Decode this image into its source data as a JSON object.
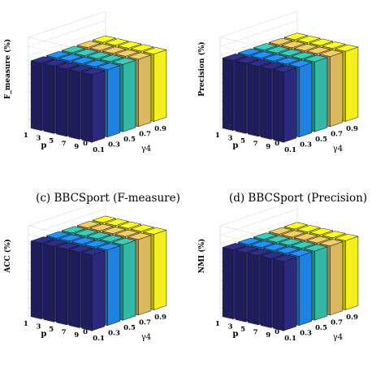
{
  "figure": {
    "captions": [
      "(c) BBCSport (F-measure)",
      "(d) BBCSport (Precision)"
    ]
  },
  "colors": [
    "#2b2a7e",
    "#1f82e0",
    "#35b7a6",
    "#d9b85e",
    "#f5ef1f"
  ],
  "chart_data": [
    {
      "type": "bar3d",
      "ylabel": "F_measure (%)",
      "zlim": [
        0,
        1
      ],
      "z_ticks": [
        "0",
        "0.1",
        "0.2",
        "0.3",
        "0.4",
        "0.5",
        "0.6",
        "0.7",
        "0.8",
        "0.9",
        "1"
      ],
      "p_label": "p",
      "p_ticks": [
        "1",
        "3",
        "5",
        "7",
        "9"
      ],
      "gamma_label": "γ4",
      "gamma_ticks": [
        "0.1",
        "0.3",
        "0.5",
        "0.7",
        "0.9"
      ],
      "values": [
        [
          0.74,
          0.74,
          0.74,
          0.74,
          0.74
        ],
        [
          0.74,
          0.74,
          0.74,
          0.74,
          0.74
        ],
        [
          0.74,
          0.74,
          0.74,
          0.74,
          0.74
        ],
        [
          0.74,
          0.74,
          0.74,
          0.74,
          0.74
        ],
        [
          0.74,
          0.74,
          0.74,
          0.74,
          0.74
        ]
      ]
    },
    {
      "type": "bar3d",
      "ylabel": "Precision (%)",
      "zlim": [
        0,
        1
      ],
      "z_ticks": [
        "0",
        "0.1",
        "0.2",
        "0.3",
        "0.4",
        "0.5",
        "0.6",
        "0.7",
        "0.8",
        "0.9",
        "1"
      ],
      "p_label": "p",
      "p_ticks": [
        "1",
        "3",
        "5",
        "7",
        "9"
      ],
      "gamma_label": "γ4",
      "gamma_ticks": [
        "0.1",
        "0.3",
        "0.5",
        "0.7",
        "0.9"
      ],
      "values": [
        [
          0.77,
          0.77,
          0.77,
          0.77,
          0.77
        ],
        [
          0.77,
          0.77,
          0.77,
          0.77,
          0.77
        ],
        [
          0.77,
          0.77,
          0.77,
          0.77,
          0.77
        ],
        [
          0.77,
          0.77,
          0.77,
          0.77,
          0.77
        ],
        [
          0.77,
          0.77,
          0.77,
          0.77,
          0.77
        ]
      ]
    },
    {
      "type": "bar3d",
      "ylabel": "ACC (%)",
      "zlim": [
        0,
        1
      ],
      "z_ticks": [
        "0",
        "0.1",
        "0.2",
        "0.3",
        "0.4",
        "0.5",
        "0.6",
        "0.7",
        "0.8",
        "0.9",
        "1"
      ],
      "p_label": "p",
      "p_ticks": [
        "1",
        "3",
        "5",
        "7",
        "9"
      ],
      "gamma_label": "γ4",
      "gamma_ticks": [
        "0.1",
        "0.3",
        "0.5",
        "0.7",
        "0.9"
      ],
      "values": [
        [
          0.83,
          0.83,
          0.83,
          0.83,
          0.83
        ],
        [
          0.83,
          0.83,
          0.83,
          0.83,
          0.83
        ],
        [
          0.83,
          0.83,
          0.83,
          0.83,
          0.83
        ],
        [
          0.83,
          0.83,
          0.83,
          0.83,
          0.83
        ],
        [
          0.83,
          0.83,
          0.83,
          0.83,
          0.83
        ]
      ]
    },
    {
      "type": "bar3d",
      "ylabel": "NMI (%)",
      "zlim": [
        0,
        1
      ],
      "z_ticks": [
        "0",
        "0.1",
        "0.2",
        "0.3",
        "0.4",
        "0.5",
        "0.6",
        "0.7",
        "0.8",
        "0.9",
        "1"
      ],
      "p_label": "p",
      "p_ticks": [
        "1",
        "3",
        "5",
        "7",
        "9"
      ],
      "gamma_label": "γ4",
      "gamma_ticks": [
        "0.1",
        "0.3",
        "0.5",
        "0.7",
        "0.9"
      ],
      "values": [
        [
          0.76,
          0.76,
          0.76,
          0.76,
          0.76
        ],
        [
          0.76,
          0.76,
          0.76,
          0.76,
          0.76
        ],
        [
          0.76,
          0.76,
          0.76,
          0.76,
          0.76
        ],
        [
          0.76,
          0.76,
          0.76,
          0.76,
          0.76
        ],
        [
          0.76,
          0.76,
          0.76,
          0.76,
          0.76
        ]
      ]
    }
  ]
}
